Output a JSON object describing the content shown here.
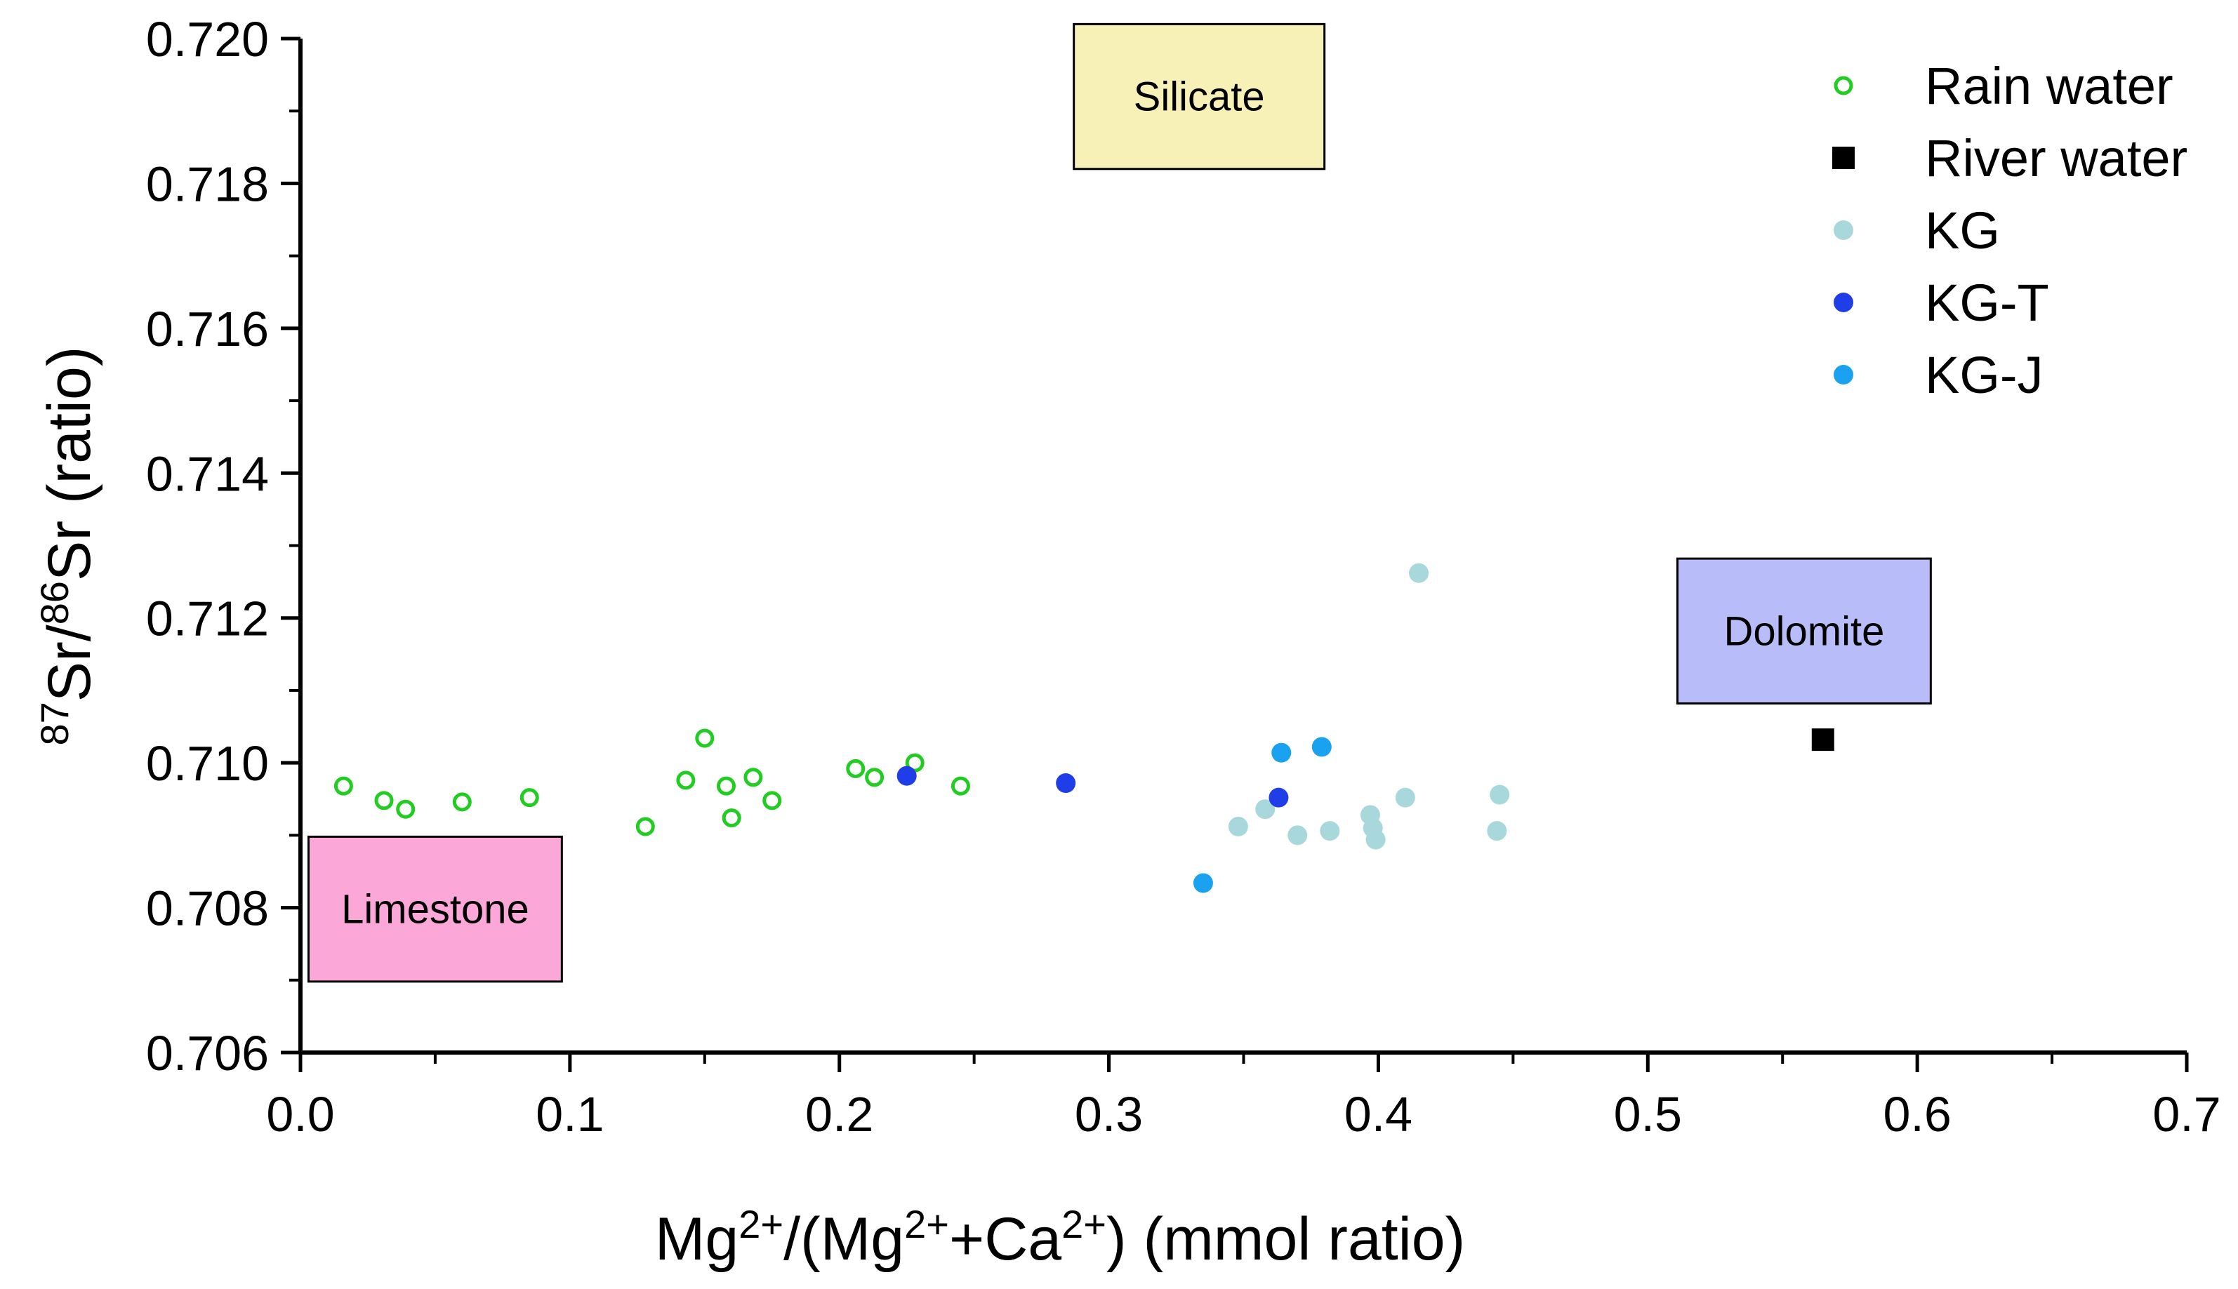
{
  "chart_data": {
    "type": "scatter",
    "title": "",
    "xlabel": {
      "parts": [
        [
          "Mg",
          ""
        ],
        [
          "2+",
          "sup"
        ],
        [
          "/(Mg",
          ""
        ],
        [
          "2+",
          "sup"
        ],
        [
          "+Ca",
          ""
        ],
        [
          "2+",
          "sup"
        ],
        [
          ") (mmol ratio)",
          ""
        ]
      ]
    },
    "ylabel": {
      "parts": [
        [
          "87",
          "sup"
        ],
        [
          "Sr/",
          ""
        ],
        [
          "86",
          "sup"
        ],
        [
          "Sr (ratio)",
          ""
        ]
      ]
    },
    "xlim": [
      0.0,
      0.7
    ],
    "ylim": [
      0.706,
      0.72
    ],
    "xticks": [
      0.0,
      0.1,
      0.2,
      0.3,
      0.4,
      0.5,
      0.6,
      0.7
    ],
    "xtick_labels": [
      "0.0",
      "0.1",
      "0.2",
      "0.3",
      "0.4",
      "0.5",
      "0.6",
      "0.7"
    ],
    "yticks": [
      0.706,
      0.708,
      0.71,
      0.712,
      0.714,
      0.716,
      0.718,
      0.72
    ],
    "ytick_labels": [
      "0.706",
      "0.708",
      "0.710",
      "0.712",
      "0.714",
      "0.716",
      "0.718",
      "0.720"
    ],
    "grid": false,
    "legend_position": "top-right",
    "series": [
      {
        "name": "Rain water",
        "marker": "open-circle",
        "color": "#22cc22",
        "points": [
          [
            0.016,
            0.70968
          ],
          [
            0.031,
            0.70948
          ],
          [
            0.039,
            0.70936
          ],
          [
            0.06,
            0.70946
          ],
          [
            0.085,
            0.70952
          ],
          [
            0.128,
            0.70912
          ],
          [
            0.143,
            0.70976
          ],
          [
            0.15,
            0.71034
          ],
          [
            0.158,
            0.70968
          ],
          [
            0.16,
            0.70924
          ],
          [
            0.168,
            0.7098
          ],
          [
            0.175,
            0.70948
          ],
          [
            0.206,
            0.70992
          ],
          [
            0.213,
            0.7098
          ],
          [
            0.228,
            0.71
          ],
          [
            0.245,
            0.70968
          ]
        ]
      },
      {
        "name": "River water",
        "marker": "square",
        "color": "#000000",
        "points": [
          [
            0.565,
            0.71032
          ]
        ]
      },
      {
        "name": "KG",
        "marker": "filled-circle",
        "color": "#a8d8dc",
        "points": [
          [
            0.348,
            0.70912
          ],
          [
            0.358,
            0.70936
          ],
          [
            0.37,
            0.709
          ],
          [
            0.382,
            0.70906
          ],
          [
            0.397,
            0.70928
          ],
          [
            0.398,
            0.7091
          ],
          [
            0.399,
            0.70894
          ],
          [
            0.41,
            0.70952
          ],
          [
            0.415,
            0.71262
          ],
          [
            0.444,
            0.70906
          ],
          [
            0.445,
            0.70956
          ]
        ]
      },
      {
        "name": "KG-T",
        "marker": "filled-circle",
        "color": "#1f3ee8",
        "points": [
          [
            0.225,
            0.70982
          ],
          [
            0.284,
            0.70972
          ],
          [
            0.363,
            0.70952
          ]
        ]
      },
      {
        "name": "KG-J",
        "marker": "filled-circle",
        "color": "#1aa1f0",
        "points": [
          [
            0.335,
            0.70834
          ],
          [
            0.364,
            0.71014
          ],
          [
            0.379,
            0.71022
          ]
        ]
      }
    ],
    "annotations": [
      {
        "text": "Silicate",
        "fill": "#f7f1b8",
        "x0": 0.287,
        "x1": 0.38,
        "y0": 0.7182,
        "y1": 0.7202
      },
      {
        "text": "Dolomite",
        "fill": "#b8bdfa",
        "x0": 0.511,
        "x1": 0.605,
        "y0": 0.71082,
        "y1": 0.71282
      },
      {
        "text": "Limestone",
        "fill": "#fba8d8",
        "x0": 0.003,
        "x1": 0.097,
        "y0": 0.70698,
        "y1": 0.70898
      }
    ]
  }
}
